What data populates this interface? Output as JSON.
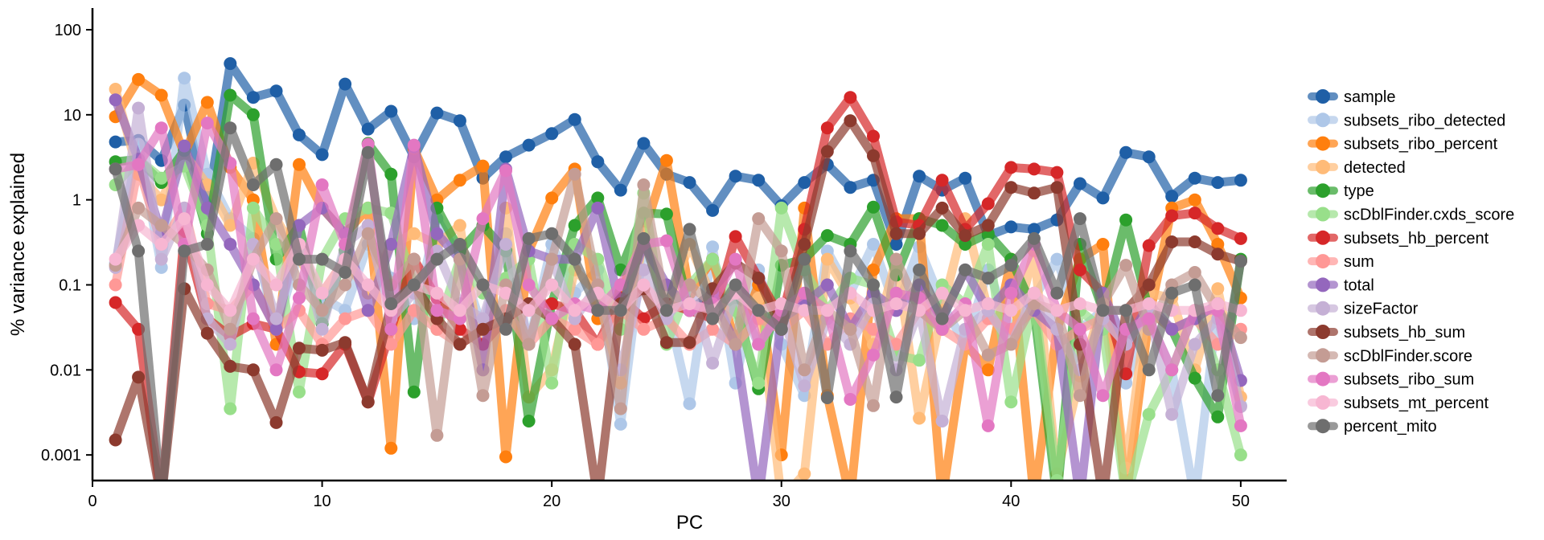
{
  "chart_data": {
    "type": "line",
    "xlabel": "PC",
    "ylabel": "% variance explained",
    "yscale": "log",
    "xlim": [
      0,
      52
    ],
    "ylim": [
      0.0005,
      180
    ],
    "x_ticks": [
      0,
      10,
      20,
      30,
      40,
      50
    ],
    "x_tick_labels": [
      "0",
      "10",
      "20",
      "30",
      "40",
      "50"
    ],
    "y_ticks": [
      0.001,
      0.01,
      0.1,
      1,
      10,
      100
    ],
    "y_tick_labels": [
      "0.001",
      "0.01",
      "0.1",
      "1",
      "10",
      "100"
    ],
    "grid": false,
    "legend_position": "right",
    "x": [
      1,
      2,
      3,
      4,
      5,
      6,
      7,
      8,
      9,
      10,
      11,
      12,
      13,
      14,
      15,
      16,
      17,
      18,
      19,
      20,
      21,
      22,
      23,
      24,
      25,
      26,
      27,
      28,
      29,
      30,
      31,
      32,
      33,
      34,
      35,
      36,
      37,
      38,
      39,
      40,
      41,
      42,
      43,
      44,
      45,
      46,
      47,
      48,
      49,
      50
    ],
    "series": [
      {
        "name": "sample",
        "color": "#1f5fa6",
        "values": [
          4.8,
          5.0,
          2.9,
          13,
          0.8,
          40,
          16,
          19,
          5.8,
          3.4,
          23,
          6.8,
          11,
          3.2,
          10.5,
          8.5,
          1.8,
          3.2,
          4.4,
          6.0,
          8.8,
          2.8,
          1.3,
          4.6,
          2.0,
          1.6,
          0.75,
          1.9,
          1.7,
          0.85,
          1.6,
          2.6,
          1.4,
          1.7,
          0.3,
          1.9,
          1.3,
          1.8,
          0.38,
          0.48,
          0.45,
          0.58,
          1.55,
          1.05,
          3.6,
          3.2,
          1.1,
          1.8,
          1.6,
          1.7
        ]
      },
      {
        "name": "subsets_ribo_detected",
        "color": "#aec7e8",
        "values": [
          0.18,
          4.5,
          0.16,
          27,
          2.0,
          0.6,
          0.35,
          0.03,
          0.25,
          0.07,
          0.05,
          0.3,
          0.12,
          0.04,
          0.6,
          0.2,
          0.03,
          0.4,
          0.02,
          0.3,
          0.08,
          0.15,
          0.0023,
          0.3,
          0.06,
          0.004,
          0.28,
          0.007,
          0.15,
          0.02,
          0.005,
          0.25,
          0.08,
          0.3,
          0.05,
          0.28,
          0.06,
          0.02,
          0.15,
          0.03,
          0.07,
          0.2,
          0.03,
          0.05,
          0.007,
          0.04,
          0.01,
          0.0003,
          0.06,
          0.0038
        ]
      },
      {
        "name": "subsets_ribo_percent",
        "color": "#ff7f0e",
        "values": [
          9.5,
          26,
          17,
          3.5,
          14,
          2.4,
          1.0,
          0.02,
          2.6,
          0.8,
          0.4,
          0.8,
          0.0012,
          4.0,
          1.0,
          1.7,
          2.5,
          0.00095,
          0.25,
          1.05,
          2.3,
          0.04,
          0.08,
          0.4,
          2.9,
          0.08,
          0.2,
          0.02,
          0.1,
          0.001,
          0.8,
          0.005,
          0.0003,
          0.15,
          0.6,
          0.6,
          0.0003,
          0.02,
          0.01,
          0.2,
          0.0003,
          0.03,
          0.2,
          0.3,
          0.0003,
          0.04,
          0.8,
          1.0,
          0.3,
          0.07
        ]
      },
      {
        "name": "detected",
        "color": "#ffbb78",
        "values": [
          20,
          2.0,
          1.0,
          3.5,
          1.5,
          0.5,
          2.7,
          0.6,
          0.2,
          0.08,
          0.2,
          0.08,
          0.3,
          0.4,
          0.3,
          0.5,
          0.01,
          0.8,
          0.0048,
          0.01,
          0.15,
          0.08,
          0.007,
          0.4,
          0.05,
          0.3,
          0.07,
          0.05,
          0.07,
          0.0003,
          0.0006,
          0.2,
          0.07,
          0.02,
          0.2,
          0.0027,
          0.05,
          0.6,
          0.05,
          0.02,
          0.25,
          0.0006,
          0.0085,
          0.06,
          0.0007,
          0.08,
          0.07,
          0.01,
          0.09,
          0.0048
        ]
      },
      {
        "name": "type",
        "color": "#2ca02c",
        "values": [
          2.8,
          3.0,
          1.6,
          3.8,
          0.4,
          17,
          10,
          0.2,
          0.5,
          0.035,
          0.25,
          4.6,
          2.0,
          0.0055,
          0.8,
          0.25,
          0.5,
          0.25,
          0.0025,
          0.06,
          0.5,
          1.05,
          0.15,
          0.7,
          0.68,
          0.05,
          0.08,
          0.06,
          0.006,
          0.17,
          0.2,
          0.38,
          0.3,
          0.82,
          0.13,
          0.6,
          0.5,
          0.3,
          0.4,
          0.2,
          0.05,
          0.0003,
          0.3,
          0.05,
          0.58,
          0.05,
          0.03,
          0.008,
          0.0028,
          0.2
        ]
      },
      {
        "name": "scDblFinder.cxds_score",
        "color": "#98df8a",
        "values": [
          1.5,
          3.0,
          1.8,
          2.5,
          0.5,
          0.0035,
          0.8,
          0.3,
          0.0055,
          0.2,
          0.6,
          0.8,
          0.7,
          0.1,
          0.03,
          0.2,
          0.08,
          0.12,
          0.2,
          0.007,
          0.3,
          0.2,
          0.03,
          1.2,
          0.02,
          0.1,
          0.2,
          0.05,
          0.007,
          0.8,
          0.15,
          0.05,
          0.12,
          0.1,
          0.015,
          0.013,
          0.1,
          0.06,
          0.3,
          0.0042,
          0.07,
          0.0005,
          0.05,
          0.03,
          0.0003,
          0.003,
          0.01,
          0.05,
          0.01,
          0.001
        ]
      },
      {
        "name": "subsets_hb_percent",
        "color": "#d62728",
        "values": [
          0.062,
          0.03,
          0.0003,
          0.42,
          0.04,
          0.025,
          0.035,
          0.03,
          0.0095,
          0.009,
          0.02,
          0.0042,
          0.03,
          0.2,
          0.07,
          0.03,
          0.02,
          0.04,
          0.06,
          0.06,
          0.05,
          0.02,
          0.07,
          0.04,
          0.06,
          0.05,
          0.04,
          0.37,
          0.12,
          0.04,
          0.45,
          7.0,
          16,
          5.6,
          0.55,
          0.5,
          1.7,
          0.45,
          0.9,
          2.4,
          2.3,
          2.1,
          0.15,
          0.08,
          0.009,
          0.29,
          0.65,
          0.7,
          0.46,
          0.35
        ]
      },
      {
        "name": "sum",
        "color": "#ff9896",
        "values": [
          0.1,
          2.5,
          0.3,
          0.8,
          0.06,
          0.05,
          0.1,
          0.03,
          0.05,
          0.02,
          0.04,
          0.05,
          0.02,
          0.05,
          0.03,
          0.02,
          0.03,
          0.05,
          0.02,
          0.04,
          0.03,
          0.02,
          0.05,
          0.03,
          0.04,
          0.02,
          0.03,
          0.02,
          0.04,
          0.03,
          0.05,
          0.02,
          0.04,
          0.03,
          0.02,
          0.05,
          0.03,
          0.02,
          0.04,
          0.03,
          0.05,
          0.02,
          0.03,
          0.04,
          0.02,
          0.05,
          0.03,
          0.04,
          0.02,
          0.03
        ]
      },
      {
        "name": "total",
        "color": "#9467bd",
        "values": [
          15,
          3.0,
          0.4,
          4.3,
          0.8,
          0.3,
          0.1,
          0.03,
          0.5,
          0.8,
          0.4,
          0.05,
          0.3,
          4.2,
          0.4,
          0.2,
          0.01,
          2.3,
          0.25,
          0.2,
          0.2,
          0.8,
          0.05,
          0.3,
          0.1,
          0.05,
          0.08,
          0.02,
          0.0003,
          0.04,
          0.06,
          0.1,
          0.03,
          0.08,
          0.05,
          0.1,
          0.04,
          0.15,
          0.05,
          0.1,
          0.05,
          0.03,
          0.0003,
          0.08,
          0.02,
          0.06,
          0.03,
          0.04,
          0.06,
          0.0075
        ]
      },
      {
        "name": "sizeFactor",
        "color": "#c5b0d5",
        "values": [
          0.16,
          12,
          0.2,
          0.8,
          0.04,
          0.02,
          0.3,
          0.04,
          0.3,
          0.03,
          0.3,
          0.5,
          0.04,
          0.08,
          0.25,
          0.06,
          0.04,
          0.3,
          0.02,
          0.2,
          0.04,
          0.1,
          0.01,
          0.15,
          0.04,
          0.1,
          0.012,
          0.08,
          0.02,
          0.05,
          0.0065,
          0.04,
          0.02,
          0.06,
          0.01,
          0.05,
          0.0025,
          0.03,
          0.05,
          0.02,
          0.08,
          0.03,
          0.01,
          0.04,
          0.02,
          0.05,
          0.003,
          0.02,
          0.04,
          0.0037
        ]
      },
      {
        "name": "subsets_hb_sum",
        "color": "#8c3a2e",
        "values": [
          0.0015,
          0.0082,
          0.0003,
          0.09,
          0.027,
          0.011,
          0.01,
          0.0024,
          0.018,
          0.017,
          0.021,
          0.0042,
          0.06,
          0.1,
          0.04,
          0.02,
          0.03,
          0.04,
          0.06,
          0.04,
          0.02,
          0.0003,
          0.06,
          0.09,
          0.021,
          0.021,
          0.09,
          0.18,
          0.12,
          0.03,
          0.3,
          3.7,
          8.5,
          3.3,
          0.4,
          0.4,
          0.8,
          0.38,
          0.5,
          1.4,
          1.2,
          1.4,
          0.02,
          0.0003,
          0.05,
          0.1,
          0.32,
          0.32,
          0.23,
          0.19
        ]
      },
      {
        "name": "scDblFinder.score",
        "color": "#c49c94",
        "values": [
          0.17,
          0.8,
          0.5,
          0.3,
          0.15,
          0.03,
          0.2,
          0.6,
          0.1,
          0.05,
          0.1,
          0.4,
          0.1,
          0.2,
          0.0017,
          0.2,
          0.005,
          0.1,
          0.02,
          0.2,
          2.0,
          0.1,
          0.0035,
          1.5,
          0.05,
          0.1,
          0.06,
          0.02,
          0.6,
          0.25,
          0.01,
          0.05,
          0.03,
          0.0038,
          0.2,
          0.05,
          0.03,
          0.05,
          0.015,
          0.02,
          0.06,
          0.05,
          0.005,
          0.06,
          0.17,
          0.03,
          0.1,
          0.14,
          0.05,
          0.024
        ]
      },
      {
        "name": "subsets_ribo_sum",
        "color": "#e377c2",
        "values": [
          2.3,
          2.6,
          7.0,
          0.3,
          8.0,
          2.7,
          0.04,
          0.01,
          0.07,
          1.5,
          0.3,
          4.5,
          0.03,
          4.4,
          0.05,
          0.04,
          0.6,
          2.2,
          0.1,
          0.04,
          0.06,
          0.05,
          0.1,
          0.3,
          0.33,
          0.05,
          0.06,
          0.2,
          0.02,
          0.05,
          0.08,
          0.05,
          0.0045,
          0.015,
          0.08,
          0.07,
          0.03,
          0.06,
          0.0022,
          0.08,
          0.3,
          0.05,
          0.03,
          0.005,
          0.03,
          0.04,
          0.01,
          0.05,
          0.05,
          0.0022
        ]
      },
      {
        "name": "subsets_mt_percent",
        "color": "#f7b6d2",
        "values": [
          0.2,
          0.5,
          0.3,
          0.6,
          0.1,
          0.05,
          0.2,
          0.1,
          0.3,
          0.08,
          0.2,
          0.1,
          0.05,
          0.1,
          0.08,
          0.05,
          0.1,
          0.08,
          0.05,
          0.1,
          0.05,
          0.08,
          0.05,
          0.1,
          0.05,
          0.06,
          0.05,
          0.08,
          0.05,
          0.06,
          0.05,
          0.05,
          0.08,
          0.05,
          0.06,
          0.05,
          0.08,
          0.05,
          0.06,
          0.05,
          0.08,
          0.05,
          0.06,
          0.05,
          0.05,
          0.06,
          0.05,
          0.05,
          0.06,
          0.05
        ]
      },
      {
        "name": "percent_mito",
        "color": "#6e6e6e",
        "values": [
          2.3,
          0.25,
          0.0003,
          0.25,
          0.3,
          7.0,
          1.5,
          2.6,
          0.2,
          0.2,
          0.14,
          3.6,
          0.06,
          0.1,
          0.2,
          0.3,
          0.1,
          0.03,
          0.35,
          0.4,
          0.2,
          0.05,
          0.05,
          0.35,
          0.05,
          0.45,
          0.04,
          0.1,
          0.05,
          0.03,
          0.2,
          0.0047,
          0.25,
          0.1,
          0.0048,
          0.15,
          0.04,
          0.15,
          0.12,
          0.17,
          0.35,
          0.08,
          0.6,
          0.05,
          0.05,
          0.01,
          0.08,
          0.1,
          0.005,
          0.19
        ]
      }
    ]
  }
}
